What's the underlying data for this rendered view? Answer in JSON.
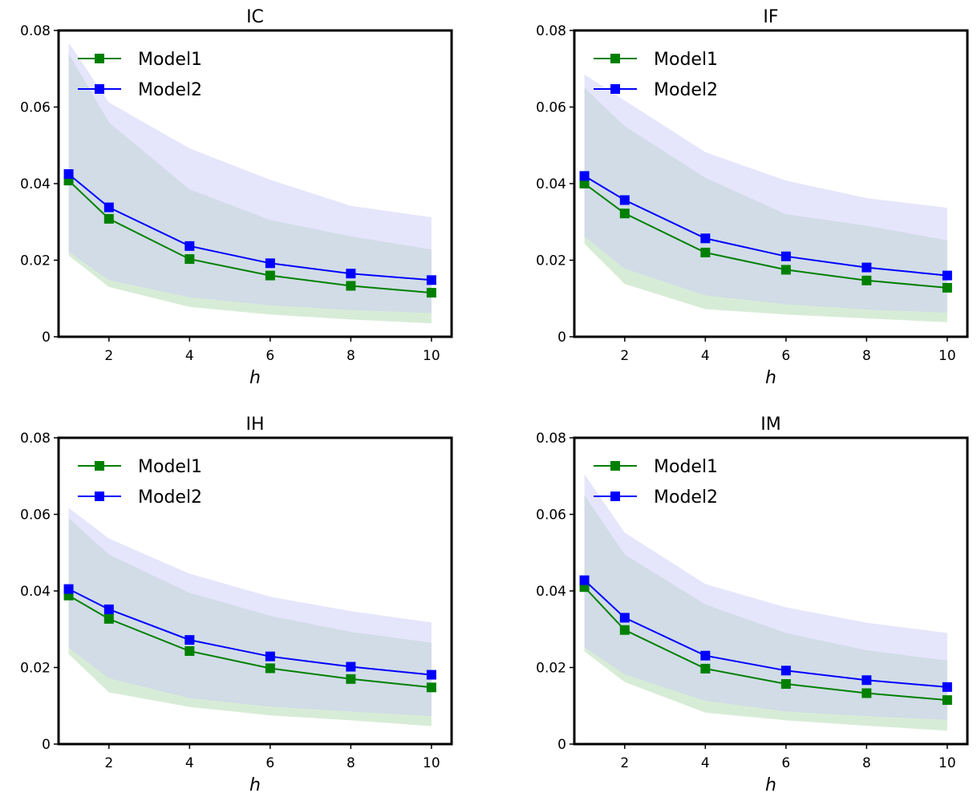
{
  "colors": {
    "model1": "#008000",
    "model2": "#0000ff",
    "model1_band": "#d7ecd7",
    "model2_band": "#ccccf7",
    "overlap_band": "#c4d2e3"
  },
  "chart_data": [
    {
      "type": "line",
      "title": "IC",
      "xlabel": "h",
      "ylabel": "",
      "x": [
        1,
        2,
        4,
        6,
        8,
        10
      ],
      "xlim": [
        0.75,
        10.5
      ],
      "ylim": [
        0,
        0.08
      ],
      "xticks": [
        2,
        4,
        6,
        8,
        10
      ],
      "xtick_labels": [
        "2",
        "4",
        "6",
        "8",
        "10"
      ],
      "yticks": [
        0,
        0.02,
        0.04,
        0.06,
        0.08
      ],
      "ytick_labels": [
        "0",
        "0.02",
        "0.04",
        "0.06",
        "0.08"
      ],
      "legend_position": "top-left",
      "grid": false,
      "series": [
        {
          "name": "Model1",
          "values": [
            0.0408,
            0.0308,
            0.0203,
            0.016,
            0.0133,
            0.0115
          ],
          "band_low": [
            0.0212,
            0.013,
            0.0078,
            0.0058,
            0.0045,
            0.0035
          ],
          "band_high": [
            0.074,
            0.056,
            0.0385,
            0.0305,
            0.0262,
            0.0228
          ]
        },
        {
          "name": "Model2",
          "values": [
            0.0425,
            0.0338,
            0.0237,
            0.0192,
            0.0165,
            0.0148
          ],
          "band_low": [
            0.0222,
            0.0148,
            0.0103,
            0.0082,
            0.007,
            0.0062
          ],
          "band_high": [
            0.0768,
            0.0612,
            0.0492,
            0.041,
            0.0342,
            0.0312
          ]
        }
      ]
    },
    {
      "type": "line",
      "title": "IF",
      "xlabel": "h",
      "ylabel": "",
      "x": [
        1,
        2,
        4,
        6,
        8,
        10
      ],
      "xlim": [
        0.75,
        10.5
      ],
      "ylim": [
        0,
        0.08
      ],
      "xticks": [
        2,
        4,
        6,
        8,
        10
      ],
      "xtick_labels": [
        "2",
        "4",
        "6",
        "8",
        "10"
      ],
      "yticks": [
        0,
        0.02,
        0.04,
        0.06,
        0.08
      ],
      "ytick_labels": [
        "0",
        "0.02",
        "0.04",
        "0.06",
        "0.08"
      ],
      "legend_position": "top-left",
      "grid": false,
      "series": [
        {
          "name": "Model1",
          "values": [
            0.04,
            0.0322,
            0.022,
            0.0175,
            0.0147,
            0.0128
          ],
          "band_low": [
            0.0243,
            0.0138,
            0.0072,
            0.0058,
            0.0048,
            0.0038
          ],
          "band_high": [
            0.065,
            0.055,
            0.0415,
            0.032,
            0.029,
            0.0252
          ]
        },
        {
          "name": "Model2",
          "values": [
            0.042,
            0.0357,
            0.0257,
            0.021,
            0.0181,
            0.016
          ],
          "band_low": [
            0.0262,
            0.0178,
            0.0108,
            0.0085,
            0.0071,
            0.0063
          ],
          "band_high": [
            0.0685,
            0.0617,
            0.0482,
            0.0408,
            0.0362,
            0.0337
          ]
        }
      ]
    },
    {
      "type": "line",
      "title": "IH",
      "xlabel": "h",
      "ylabel": "",
      "x": [
        1,
        2,
        4,
        6,
        8,
        10
      ],
      "xlim": [
        0.75,
        10.5
      ],
      "ylim": [
        0,
        0.08
      ],
      "xticks": [
        2,
        4,
        6,
        8,
        10
      ],
      "xtick_labels": [
        "2",
        "4",
        "6",
        "8",
        "10"
      ],
      "yticks": [
        0,
        0.02,
        0.04,
        0.06,
        0.08
      ],
      "ytick_labels": [
        "0",
        "0.02",
        "0.04",
        "0.06",
        "0.08"
      ],
      "legend_position": "top-left",
      "grid": false,
      "series": [
        {
          "name": "Model1",
          "values": [
            0.0388,
            0.0327,
            0.0243,
            0.0198,
            0.017,
            0.0148
          ],
          "band_low": [
            0.0235,
            0.0135,
            0.0097,
            0.0075,
            0.0062,
            0.0047
          ],
          "band_high": [
            0.059,
            0.0495,
            0.0395,
            0.0335,
            0.0293,
            0.0265
          ]
        },
        {
          "name": "Model2",
          "values": [
            0.0405,
            0.0352,
            0.0272,
            0.0229,
            0.0202,
            0.0181
          ],
          "band_low": [
            0.0252,
            0.0172,
            0.012,
            0.0098,
            0.0085,
            0.0073
          ],
          "band_high": [
            0.0617,
            0.0537,
            0.0445,
            0.0385,
            0.0347,
            0.0318
          ]
        }
      ]
    },
    {
      "type": "line",
      "title": "IM",
      "xlabel": "h",
      "ylabel": "",
      "x": [
        1,
        2,
        4,
        6,
        8,
        10
      ],
      "xlim": [
        0.75,
        10.5
      ],
      "ylim": [
        0,
        0.08
      ],
      "xticks": [
        2,
        4,
        6,
        8,
        10
      ],
      "xtick_labels": [
        "2",
        "4",
        "6",
        "8",
        "10"
      ],
      "yticks": [
        0,
        0.02,
        0.04,
        0.06,
        0.08
      ],
      "ytick_labels": [
        "0",
        "0.02",
        "0.04",
        "0.06",
        "0.08"
      ],
      "legend_position": "top-left",
      "grid": false,
      "series": [
        {
          "name": "Model1",
          "values": [
            0.041,
            0.0298,
            0.0197,
            0.0157,
            0.0133,
            0.0115
          ],
          "band_low": [
            0.0242,
            0.0162,
            0.0082,
            0.0062,
            0.0048,
            0.0035
          ],
          "band_high": [
            0.065,
            0.0495,
            0.0365,
            0.029,
            0.0245,
            0.0218
          ]
        },
        {
          "name": "Model2",
          "values": [
            0.0428,
            0.033,
            0.0231,
            0.0192,
            0.0167,
            0.0149
          ],
          "band_low": [
            0.0253,
            0.0182,
            0.0113,
            0.0085,
            0.0073,
            0.0063
          ],
          "band_high": [
            0.0705,
            0.0552,
            0.0418,
            0.0357,
            0.0317,
            0.029
          ]
        }
      ]
    }
  ]
}
